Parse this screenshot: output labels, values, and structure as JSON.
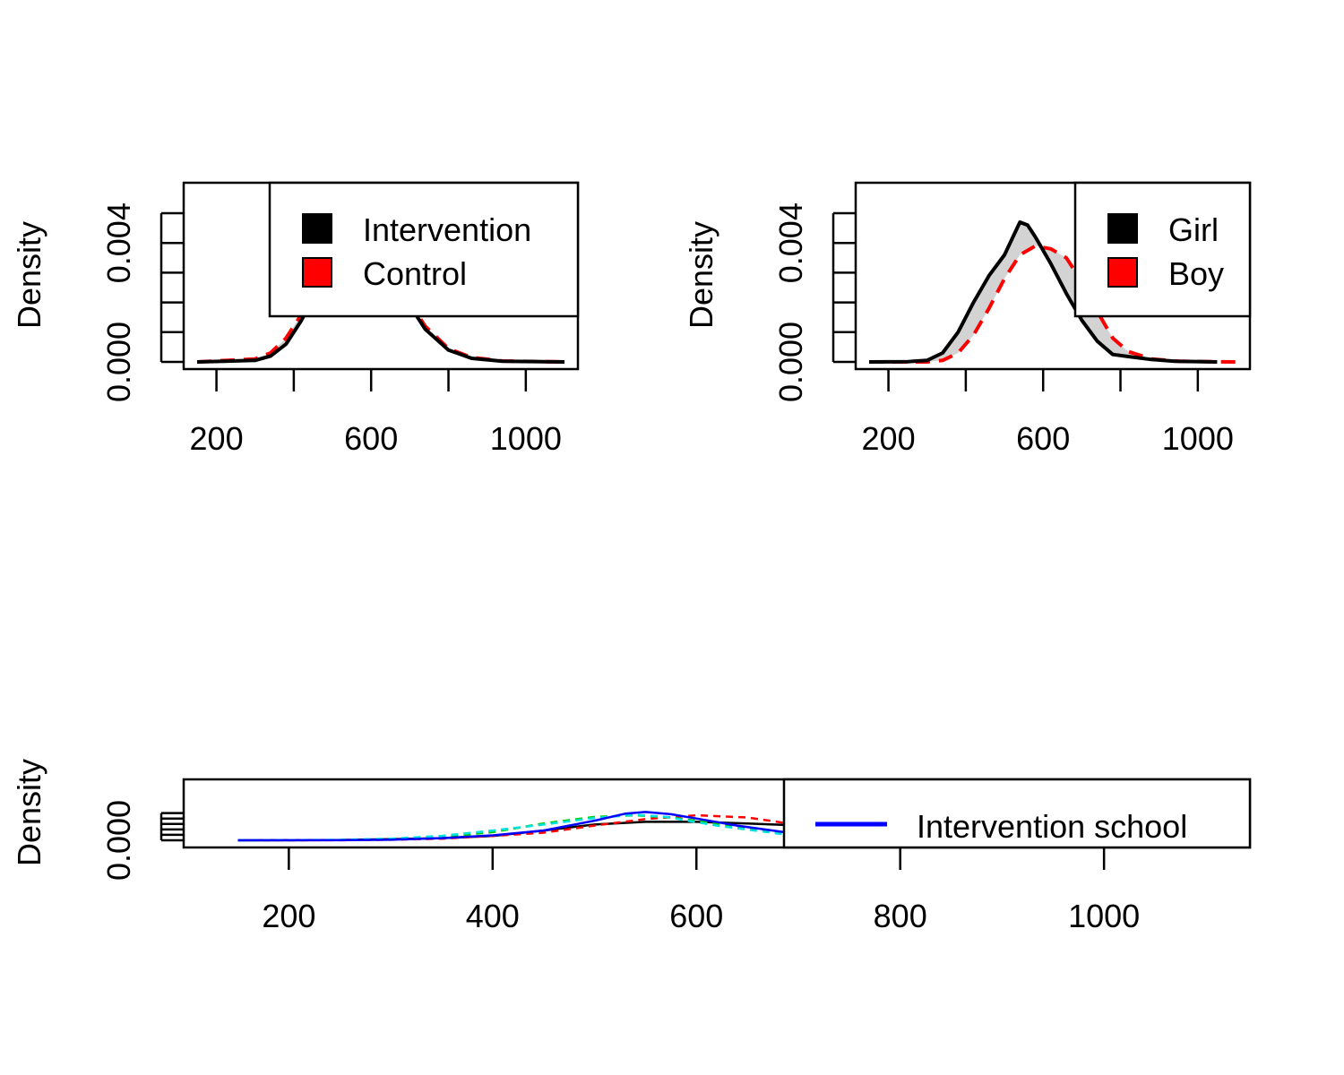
{
  "chart_data": [
    {
      "type": "line",
      "ylabel": "Density",
      "xlim": [
        150,
        1100
      ],
      "ylim": [
        0,
        0.005
      ],
      "x_ticks": [
        200,
        400,
        600,
        800,
        1000
      ],
      "x_tick_labels": [
        "200",
        "600",
        "1000"
      ],
      "y_ticks": [
        0,
        0.001,
        0.002,
        0.003,
        0.004,
        0.005
      ],
      "y_tick_labels": [
        "0.000",
        "0.004"
      ],
      "band_color": "#d3d3d3",
      "legend": {
        "position": "top-right",
        "entries": [
          {
            "label": "Intervention",
            "color": "#000000"
          },
          {
            "label": "Control",
            "color": "#ff0000"
          }
        ]
      },
      "series": [
        {
          "name": "Intervention",
          "color": "#000000",
          "dash": "solid",
          "x": [
            150,
            300,
            340,
            380,
            420,
            460,
            500,
            540,
            580,
            620,
            660,
            700,
            740,
            800,
            860,
            940,
            1100
          ],
          "y": [
            0,
            5e-05,
            0.0002,
            0.0006,
            0.0014,
            0.0024,
            0.0032,
            0.0037,
            0.0038,
            0.0035,
            0.0028,
            0.0019,
            0.0011,
            0.0004,
            0.00012,
            2e-05,
            0
          ]
        },
        {
          "name": "Control",
          "color": "#ff0000",
          "dash": "dashed",
          "x": [
            150,
            300,
            340,
            380,
            420,
            460,
            500,
            540,
            580,
            620,
            660,
            700,
            740,
            800,
            860,
            940,
            1100
          ],
          "y": [
            0,
            0.0001,
            0.0003,
            0.0008,
            0.0016,
            0.0025,
            0.0031,
            0.0035,
            0.0036,
            0.0034,
            0.0028,
            0.002,
            0.0012,
            0.00045,
            0.00015,
            3e-05,
            0
          ]
        }
      ]
    },
    {
      "type": "line",
      "ylabel": "Density",
      "xlim": [
        150,
        1100
      ],
      "ylim": [
        0,
        0.005
      ],
      "x_ticks": [
        200,
        400,
        600,
        800,
        1000
      ],
      "x_tick_labels": [
        "200",
        "600",
        "1000"
      ],
      "y_ticks": [
        0,
        0.001,
        0.002,
        0.003,
        0.004,
        0.005
      ],
      "y_tick_labels": [
        "0.000",
        "0.004"
      ],
      "band_color": "#d3d3d3",
      "legend": {
        "position": "top-right",
        "entries": [
          {
            "label": "Girl",
            "color": "#000000"
          },
          {
            "label": "Boy",
            "color": "#ff0000"
          }
        ]
      },
      "series": [
        {
          "name": "Girl",
          "color": "#000000",
          "dash": "solid",
          "x": [
            150,
            250,
            300,
            340,
            380,
            420,
            460,
            500,
            540,
            560,
            580,
            620,
            660,
            700,
            740,
            780,
            820,
            880,
            940,
            1050
          ],
          "y": [
            0,
            1e-05,
            5e-05,
            0.0003,
            0.001,
            0.002,
            0.0029,
            0.0036,
            0.0047,
            0.0046,
            0.0042,
            0.0033,
            0.0023,
            0.0014,
            0.0007,
            0.00025,
            0.00018,
            8e-05,
            2e-05,
            0
          ]
        },
        {
          "name": "Boy",
          "color": "#ff0000",
          "dash": "dashed",
          "x": [
            150,
            300,
            340,
            380,
            420,
            460,
            500,
            540,
            580,
            620,
            660,
            700,
            740,
            780,
            820,
            880,
            950,
            1100
          ],
          "y": [
            0,
            0,
            5e-05,
            0.0003,
            0.0009,
            0.0018,
            0.0028,
            0.0036,
            0.0039,
            0.0038,
            0.0035,
            0.0027,
            0.0017,
            0.0008,
            0.00035,
            0.0001,
            2e-05,
            0
          ]
        }
      ]
    },
    {
      "type": "line",
      "ylabel": "Density",
      "xlim": [
        110,
        1130
      ],
      "ylim": [
        0,
        0.0056
      ],
      "x_ticks": [
        200,
        400,
        600,
        800,
        1000
      ],
      "x_tick_labels": [
        "200",
        "400",
        "600",
        "800",
        "1000"
      ],
      "y_ticks": [
        0,
        0.001,
        0.002,
        0.003,
        0.004,
        0.005
      ],
      "y_tick_labels": [
        "0.000"
      ],
      "legend": {
        "position": "top-right",
        "entries": [
          {
            "label": "Intervention school",
            "color": "#0000ff"
          }
        ]
      },
      "series": [
        {
          "name": "Intervention school",
          "color": "#0000ff",
          "dash": "solid",
          "x": [
            150,
            250,
            300,
            350,
            400,
            450,
            500,
            530,
            550,
            575,
            600,
            640,
            690
          ],
          "y": [
            0,
            2e-05,
            0.0001,
            0.0004,
            0.0009,
            0.0018,
            0.0036,
            0.0049,
            0.0052,
            0.0048,
            0.004,
            0.0027,
            0.0014
          ]
        },
        {
          "color": "#000000",
          "dash": "solid",
          "x": [
            150,
            250,
            300,
            350,
            400,
            450,
            500,
            550,
            600,
            650,
            690
          ],
          "y": [
            0,
            5e-05,
            0.0002,
            0.0004,
            0.0008,
            0.0018,
            0.0029,
            0.0034,
            0.0034,
            0.0031,
            0.0028
          ]
        },
        {
          "color": "#ff0000",
          "dash": "dashed",
          "x": [
            150,
            250,
            300,
            350,
            400,
            450,
            500,
            550,
            600,
            650,
            690
          ],
          "y": [
            0,
            2e-05,
            0.0001,
            0.0003,
            0.0008,
            0.0014,
            0.0027,
            0.0039,
            0.0046,
            0.0042,
            0.0031
          ]
        },
        {
          "color": "#00cc00",
          "dash": "dashed",
          "x": [
            150,
            250,
            300,
            350,
            400,
            450,
            500,
            540,
            575,
            620,
            690
          ],
          "y": [
            0,
            5e-05,
            0.0002,
            0.0006,
            0.0015,
            0.0031,
            0.0043,
            0.0046,
            0.0042,
            0.0031,
            0.0013
          ]
        },
        {
          "color": "#00e0e0",
          "dash": "dashed",
          "x": [
            150,
            250,
            300,
            350,
            400,
            450,
            500,
            540,
            570,
            620,
            690
          ],
          "y": [
            0,
            8e-05,
            0.0003,
            0.0008,
            0.0018,
            0.0029,
            0.0041,
            0.0047,
            0.0043,
            0.0027,
            0.001
          ]
        }
      ]
    }
  ]
}
